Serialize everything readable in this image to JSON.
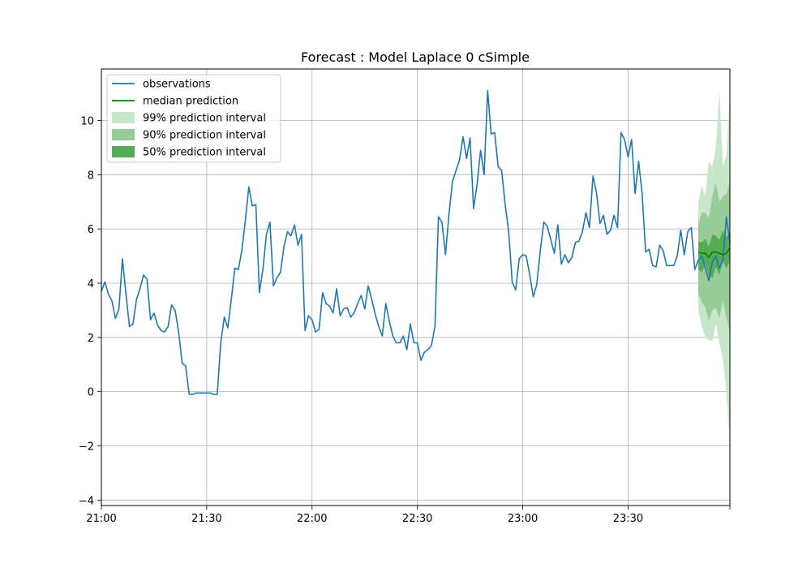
{
  "chart_data": {
    "type": "line",
    "title": "Forecast : Model Laplace 0 cSimple",
    "xlabel": "",
    "ylabel": "",
    "x_range": [
      "21:00",
      "23:59"
    ],
    "ylim": [
      -4.2,
      11.9
    ],
    "grid": true,
    "legend_position": "top-left",
    "x_ticks": [
      "21:00",
      "21:30",
      "22:00",
      "22:30",
      "23:00",
      "23:30"
    ],
    "y_ticks": [
      -4,
      -2,
      0,
      2,
      4,
      6,
      8,
      10
    ],
    "y_tick_labels": [
      "−4",
      "−2",
      "0",
      "2",
      "4",
      "6",
      "8",
      "10"
    ],
    "legend": [
      {
        "label": "observations",
        "kind": "line",
        "color": "#1f77b4"
      },
      {
        "label": "median prediction",
        "kind": "line",
        "color": "#008000"
      },
      {
        "label": "99% prediction interval",
        "kind": "patch",
        "color": "#c8e6c8"
      },
      {
        "label": "90% prediction interval",
        "kind": "patch",
        "color": "#97cc97"
      },
      {
        "label": "50% prediction interval",
        "kind": "patch",
        "color": "#57ab57"
      }
    ],
    "observations": {
      "name": "observations",
      "color": "#1f77b4",
      "points": [
        [
          "21:00",
          3.7
        ],
        [
          "21:01",
          4.05
        ],
        [
          "21:02",
          3.6
        ],
        [
          "21:03",
          3.35
        ],
        [
          "21:04",
          2.7
        ],
        [
          "21:05",
          3.05
        ],
        [
          "21:06",
          4.9
        ],
        [
          "21:07",
          3.6
        ],
        [
          "21:08",
          2.4
        ],
        [
          "21:09",
          2.5
        ],
        [
          "21:10",
          3.4
        ],
        [
          "21:11",
          3.8
        ],
        [
          "21:12",
          4.3
        ],
        [
          "21:13",
          4.15
        ],
        [
          "21:14",
          2.65
        ],
        [
          "21:15",
          2.9
        ],
        [
          "21:16",
          2.45
        ],
        [
          "21:17",
          2.25
        ],
        [
          "21:18",
          2.2
        ],
        [
          "21:19",
          2.4
        ],
        [
          "21:20",
          3.2
        ],
        [
          "21:21",
          3.0
        ],
        [
          "21:22",
          2.2
        ],
        [
          "21:23",
          1.05
        ],
        [
          "21:24",
          0.95
        ],
        [
          "21:25",
          -0.1
        ],
        [
          "21:26",
          -0.1
        ],
        [
          "21:27",
          -0.05
        ],
        [
          "21:28",
          -0.05
        ],
        [
          "21:29",
          -0.05
        ],
        [
          "21:30",
          -0.05
        ],
        [
          "21:31",
          -0.05
        ],
        [
          "21:32",
          -0.1
        ],
        [
          "21:33",
          -0.1
        ],
        [
          "21:34",
          1.8
        ],
        [
          "21:35",
          2.75
        ],
        [
          "21:36",
          2.35
        ],
        [
          "21:37",
          3.4
        ],
        [
          "21:38",
          4.55
        ],
        [
          "21:39",
          4.5
        ],
        [
          "21:40",
          5.2
        ],
        [
          "21:41",
          6.3
        ],
        [
          "21:42",
          7.55
        ],
        [
          "21:43",
          6.85
        ],
        [
          "21:44",
          6.9
        ],
        [
          "21:45",
          3.65
        ],
        [
          "21:46",
          4.5
        ],
        [
          "21:47",
          5.8
        ],
        [
          "21:48",
          6.25
        ],
        [
          "21:49",
          3.9
        ],
        [
          "21:50",
          4.2
        ],
        [
          "21:51",
          4.4
        ],
        [
          "21:52",
          5.35
        ],
        [
          "21:53",
          5.9
        ],
        [
          "21:54",
          5.75
        ],
        [
          "21:55",
          6.15
        ],
        [
          "21:56",
          5.4
        ],
        [
          "21:57",
          5.8
        ],
        [
          "21:58",
          2.25
        ],
        [
          "21:59",
          2.8
        ],
        [
          "22:00",
          2.65
        ],
        [
          "22:01",
          2.2
        ],
        [
          "22:02",
          2.3
        ],
        [
          "22:03",
          3.65
        ],
        [
          "22:04",
          3.25
        ],
        [
          "22:05",
          3.15
        ],
        [
          "22:06",
          2.9
        ],
        [
          "22:07",
          3.8
        ],
        [
          "22:08",
          2.8
        ],
        [
          "22:09",
          3.05
        ],
        [
          "22:10",
          3.1
        ],
        [
          "22:11",
          2.75
        ],
        [
          "22:12",
          2.9
        ],
        [
          "22:13",
          3.25
        ],
        [
          "22:14",
          3.55
        ],
        [
          "22:15",
          3.05
        ],
        [
          "22:16",
          3.9
        ],
        [
          "22:17",
          3.4
        ],
        [
          "22:18",
          2.85
        ],
        [
          "22:19",
          2.4
        ],
        [
          "22:20",
          2.05
        ],
        [
          "22:21",
          3.25
        ],
        [
          "22:22",
          2.6
        ],
        [
          "22:23",
          2.05
        ],
        [
          "22:24",
          1.8
        ],
        [
          "22:25",
          1.8
        ],
        [
          "22:26",
          2.05
        ],
        [
          "22:27",
          1.55
        ],
        [
          "22:28",
          2.5
        ],
        [
          "22:29",
          1.8
        ],
        [
          "22:30",
          1.8
        ],
        [
          "22:31",
          1.15
        ],
        [
          "22:32",
          1.45
        ],
        [
          "22:33",
          1.55
        ],
        [
          "22:34",
          1.7
        ],
        [
          "22:35",
          2.4
        ],
        [
          "22:36",
          6.45
        ],
        [
          "22:37",
          6.25
        ],
        [
          "22:38",
          5.05
        ],
        [
          "22:39",
          6.55
        ],
        [
          "22:40",
          7.75
        ],
        [
          "22:41",
          8.15
        ],
        [
          "22:42",
          8.55
        ],
        [
          "22:43",
          9.4
        ],
        [
          "22:44",
          8.6
        ],
        [
          "22:45",
          9.35
        ],
        [
          "22:46",
          6.75
        ],
        [
          "22:47",
          7.65
        ],
        [
          "22:48",
          8.9
        ],
        [
          "22:49",
          8.0
        ],
        [
          "22:50",
          11.1
        ],
        [
          "22:51",
          9.5
        ],
        [
          "22:52",
          9.55
        ],
        [
          "22:53",
          8.3
        ],
        [
          "22:54",
          8.15
        ],
        [
          "22:55",
          6.9
        ],
        [
          "22:56",
          5.9
        ],
        [
          "22:57",
          4.05
        ],
        [
          "22:58",
          3.75
        ],
        [
          "22:59",
          4.9
        ],
        [
          "23:00",
          5.05
        ],
        [
          "23:01",
          5.0
        ],
        [
          "23:02",
          4.3
        ],
        [
          "23:03",
          3.5
        ],
        [
          "23:04",
          3.95
        ],
        [
          "23:05",
          5.2
        ],
        [
          "23:06",
          6.25
        ],
        [
          "23:07",
          6.1
        ],
        [
          "23:08",
          5.6
        ],
        [
          "23:09",
          5.1
        ],
        [
          "23:10",
          6.15
        ],
        [
          "23:11",
          4.7
        ],
        [
          "23:12",
          5.05
        ],
        [
          "23:13",
          4.75
        ],
        [
          "23:14",
          4.95
        ],
        [
          "23:15",
          5.5
        ],
        [
          "23:16",
          5.55
        ],
        [
          "23:17",
          5.9
        ],
        [
          "23:18",
          6.6
        ],
        [
          "23:19",
          6.05
        ],
        [
          "23:20",
          7.95
        ],
        [
          "23:21",
          7.35
        ],
        [
          "23:22",
          6.2
        ],
        [
          "23:23",
          6.5
        ],
        [
          "23:24",
          5.8
        ],
        [
          "23:25",
          5.95
        ],
        [
          "23:26",
          6.5
        ],
        [
          "23:27",
          6.05
        ],
        [
          "23:28",
          9.55
        ],
        [
          "23:29",
          9.3
        ],
        [
          "23:30",
          8.65
        ],
        [
          "23:31",
          9.3
        ],
        [
          "23:32",
          7.3
        ],
        [
          "23:33",
          8.5
        ],
        [
          "23:34",
          7.3
        ],
        [
          "23:35",
          5.15
        ],
        [
          "23:36",
          5.25
        ],
        [
          "23:37",
          4.65
        ],
        [
          "23:38",
          4.6
        ],
        [
          "23:39",
          5.4
        ],
        [
          "23:40",
          5.2
        ],
        [
          "23:41",
          4.65
        ],
        [
          "23:42",
          4.65
        ],
        [
          "23:43",
          4.65
        ],
        [
          "23:44",
          5.0
        ],
        [
          "23:45",
          5.95
        ],
        [
          "23:46",
          5.05
        ],
        [
          "23:47",
          5.9
        ],
        [
          "23:48",
          6.05
        ],
        [
          "23:49",
          4.5
        ],
        [
          "23:50",
          4.85
        ],
        [
          "23:51",
          5.0
        ],
        [
          "23:52",
          4.55
        ],
        [
          "23:53",
          4.1
        ],
        [
          "23:54",
          4.8
        ],
        [
          "23:55",
          5.0
        ],
        [
          "23:56",
          4.55
        ],
        [
          "23:57",
          4.85
        ],
        [
          "23:58",
          6.45
        ],
        [
          "23:59",
          5.5
        ]
      ]
    },
    "forecast": {
      "x": [
        "23:50",
        "23:51",
        "23:52",
        "23:53",
        "23:54",
        "23:55",
        "23:56",
        "23:57",
        "23:58",
        "23:59"
      ],
      "median": [
        5.15,
        5.1,
        5.1,
        4.95,
        5.15,
        5.15,
        5.1,
        5.05,
        5.1,
        5.3
      ],
      "intervals": [
        {
          "name": "99% prediction interval",
          "color": "#c8e6c8",
          "lower": [
            3.0,
            2.4,
            2.0,
            1.9,
            1.85,
            2.5,
            1.8,
            1.2,
            0.0,
            -2.0
          ],
          "upper": [
            7.0,
            7.6,
            7.2,
            8.5,
            8.3,
            9.0,
            11.1,
            8.3,
            8.7,
            11.0
          ]
        },
        {
          "name": "90% prediction interval",
          "color": "#97cc97",
          "lower": [
            3.6,
            3.3,
            3.1,
            2.6,
            3.0,
            3.1,
            2.7,
            3.4,
            2.7,
            2.2
          ],
          "upper": [
            6.2,
            6.6,
            6.6,
            6.4,
            7.2,
            7.7,
            7.0,
            7.2,
            7.3,
            7.7
          ]
        },
        {
          "name": "50% prediction interval",
          "color": "#57ab57",
          "lower": [
            4.5,
            4.4,
            4.7,
            4.25,
            4.2,
            4.6,
            4.3,
            4.8,
            4.55,
            4.8
          ],
          "upper": [
            5.55,
            5.5,
            5.65,
            5.35,
            5.8,
            5.75,
            5.6,
            5.95,
            5.7,
            5.9
          ]
        }
      ]
    }
  }
}
